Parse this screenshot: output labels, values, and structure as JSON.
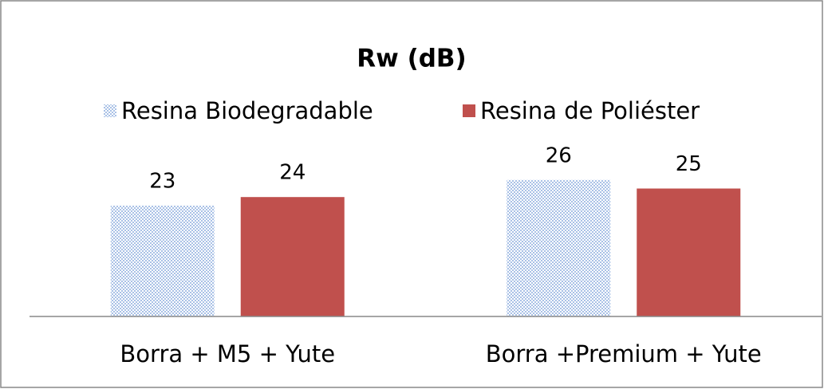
{
  "chart_data": {
    "type": "bar",
    "title": "Rw (dB)",
    "categories": [
      "Borra + M5 + Yute",
      "Borra +Premium + Yute"
    ],
    "series": [
      {
        "name": "Resina Biodegradable",
        "color": "#a9c1e6",
        "values": [
          23,
          26
        ]
      },
      {
        "name": "Resina de Poliéster",
        "color": "#c0504d",
        "values": [
          24,
          25
        ]
      }
    ],
    "ylim": [
      10,
      30
    ],
    "legend": "top"
  }
}
